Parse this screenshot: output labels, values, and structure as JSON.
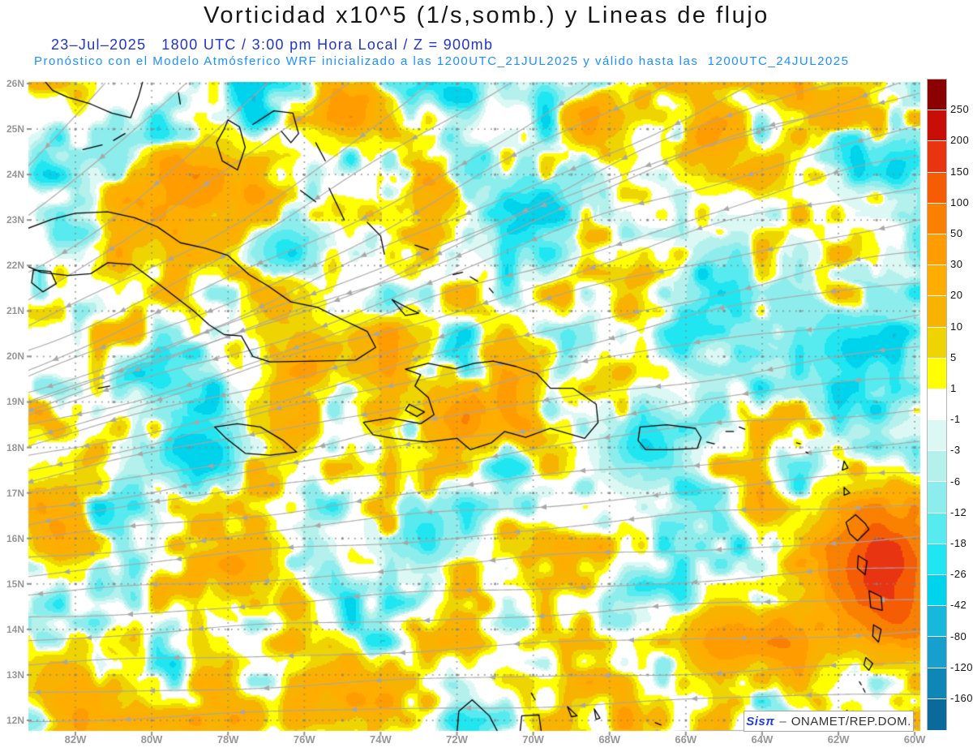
{
  "header": {
    "title": "Vorticidad x10^5 (1/s,somb.) y Lineas de flujo",
    "valid_time_line": "23–Jul–2025   1800 UTC / 3:00 pm Hora Local / Z = 900mb",
    "model_line": "Pronóstico con el Modelo Atmósferico WRF inicializado a las 1200UTC_21JUL2025 y válido hasta las  1200UTC_24JUL2025"
  },
  "map": {
    "lat_labels": [
      "26N",
      "25N",
      "24N",
      "23N",
      "22N",
      "21N",
      "20N",
      "19N",
      "18N",
      "17N",
      "16N",
      "15N",
      "14N",
      "13N",
      "12N"
    ],
    "lon_labels": [
      "82W",
      "80W",
      "78W",
      "76W",
      "74W",
      "72W",
      "70W",
      "68W",
      "66W",
      "64W",
      "62W",
      "60W"
    ]
  },
  "colorbar": {
    "tick_labels": [
      "250",
      "200",
      "150",
      "100",
      "50",
      "30",
      "20",
      "10",
      "5",
      "1",
      "-1",
      "-3",
      "-6",
      "-12",
      "-18",
      "-26",
      "-42",
      "-80",
      "-120",
      "-160"
    ],
    "segment_colors": [
      "#8b0000",
      "#c70f08",
      "#e93411",
      "#f65c04",
      "#fa8100",
      "#ff9d00",
      "#ffae00",
      "#f7b300",
      "#eed400",
      "#ffff00",
      "#ffffff",
      "#dcf8f4",
      "#b5f1ec",
      "#8dedec",
      "#57eaee",
      "#20e6f2",
      "#00d3ec",
      "#17b8dc",
      "#17a0cd",
      "#0f87b6",
      "#0b6a9c"
    ]
  },
  "watermark": {
    "system": "Sisπ",
    "separator": "–",
    "organization": "ONAMET/REP.DOM."
  },
  "colors": {
    "title": "#161616",
    "valid_time_line": "#2336c8",
    "model_line": "#1e8fff",
    "axis_labels": "#979797",
    "colorbar_labels": "#151515",
    "streamlines": "#a7a7a7",
    "coastlines": "#000000",
    "graticule_dots": "#828787",
    "background": "#ffffff"
  },
  "chart_data": {
    "type": "heatmap",
    "title": "Vorticidad x10^5 (1/s,somb.) y Lineas de flujo",
    "variable": "Vorticidad x10^5 (1/s)",
    "overlay": "Lineas de flujo (streamlines)",
    "level": "900mb",
    "valid_time": "23–Jul–2025 1800 UTC / 3:00 pm Hora Local",
    "model": "WRF",
    "initialized": "1200UTC_21JUL2025",
    "valid_until": "1200UTC_24JUL2025",
    "x_ticks": [
      "82W",
      "80W",
      "78W",
      "76W",
      "74W",
      "72W",
      "70W",
      "68W",
      "66W",
      "64W",
      "62W",
      "60W"
    ],
    "y_ticks": [
      "26N",
      "25N",
      "24N",
      "23N",
      "22N",
      "21N",
      "20N",
      "19N",
      "18N",
      "17N",
      "16N",
      "15N",
      "14N",
      "13N",
      "12N"
    ],
    "colorbar_levels": [
      250,
      200,
      150,
      100,
      50,
      30,
      20,
      10,
      5,
      1,
      -1,
      -3,
      -6,
      -12,
      -18,
      -26,
      -42,
      -80,
      -120,
      -160
    ],
    "legend_position": "right",
    "source": "Sisπ – ONAMET/REP.DOM."
  }
}
